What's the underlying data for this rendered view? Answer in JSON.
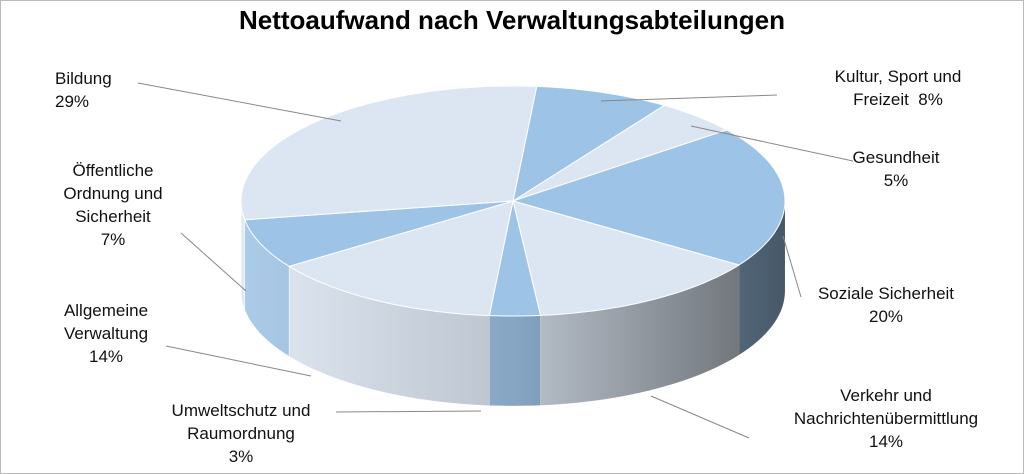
{
  "chart_data": {
    "type": "pie3d",
    "title": "Nettoaufwand nach Verwaltungsabteilungen",
    "categories": [
      "Kultur, Sport und Freizeit",
      "Gesundheit",
      "Soziale Sicherheit",
      "Verkehr und Nachrichtenübermittlung",
      "Umweltschutz und Raumordnung",
      "Allgemeine Verwaltung",
      "Öffentliche Ordnung und Sicherheit",
      "Bildung"
    ],
    "values": [
      8,
      5,
      20,
      14,
      3,
      14,
      7,
      29
    ],
    "value_labels": [
      "8%",
      "5%",
      "20%",
      "14%",
      "3%",
      "14%",
      "7%",
      "29%"
    ],
    "colors": [
      "#9dc3e6",
      "#dce6f2",
      "#9dc3e6",
      "#dce6f2",
      "#9dc3e6",
      "#dce6f2",
      "#9dc3e6",
      "#dce6f2"
    ]
  }
}
